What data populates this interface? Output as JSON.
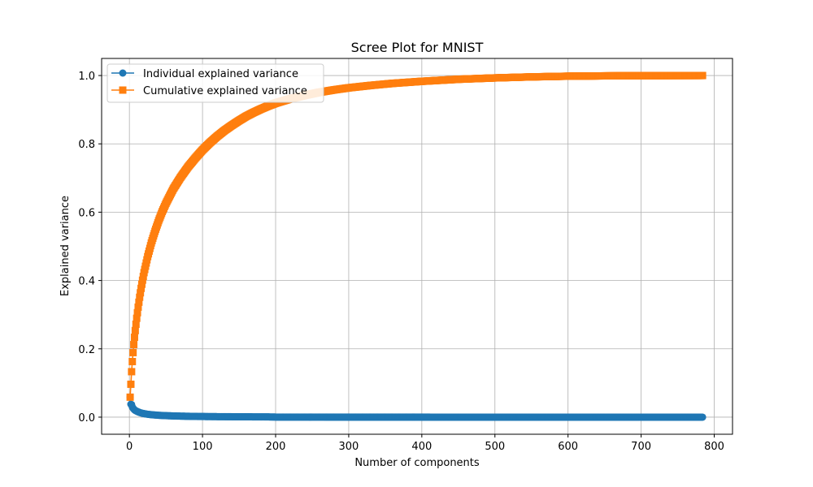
{
  "chart_data": {
    "type": "line",
    "title": "Scree Plot for MNIST",
    "xlabel": "Number of components",
    "ylabel": "Explained variance",
    "xlim": [
      -38,
      825
    ],
    "ylim": [
      -0.05,
      1.05
    ],
    "x_ticks": [
      0,
      100,
      200,
      300,
      400,
      500,
      600,
      700,
      800
    ],
    "x_tick_labels": [
      "0",
      "100",
      "200",
      "300",
      "400",
      "500",
      "600",
      "700",
      "800"
    ],
    "y_ticks": [
      0.0,
      0.2,
      0.4,
      0.6,
      0.8,
      1.0
    ],
    "y_tick_labels": [
      "0.0",
      "0.2",
      "0.4",
      "0.6",
      "0.8",
      "1.0"
    ],
    "grid": true,
    "legend_position": "top-left",
    "series": [
      {
        "name": "Individual explained variance",
        "color": "#1f77b4",
        "marker": "circle",
        "x": [
          1,
          2,
          3,
          4,
          5,
          6,
          7,
          8,
          9,
          10,
          12,
          14,
          16,
          18,
          20,
          25,
          30,
          40,
          50,
          60,
          70,
          80,
          100,
          120,
          150,
          180,
          190,
          200,
          250,
          300,
          400,
          500,
          600,
          700,
          784
        ],
        "values": [
          0.0585,
          0.0378,
          0.0368,
          0.0296,
          0.0262,
          0.0235,
          0.0214,
          0.0196,
          0.0186,
          0.0174,
          0.0154,
          0.0138,
          0.0124,
          0.0113,
          0.0103,
          0.0085,
          0.0072,
          0.0055,
          0.0044,
          0.0036,
          0.003,
          0.0025,
          0.0019,
          0.0015,
          0.0011,
          0.0008,
          0.0007,
          0.0003,
          0.0002,
          0.0001,
          5e-05,
          2e-05,
          1e-05,
          0.0,
          0.0
        ]
      },
      {
        "name": "Cumulative explained variance",
        "color": "#ff7f0e",
        "marker": "square",
        "x": [
          1,
          2,
          3,
          4,
          5,
          6,
          7,
          8,
          9,
          10,
          12,
          14,
          16,
          18,
          20,
          25,
          30,
          35,
          40,
          45,
          50,
          60,
          70,
          80,
          90,
          100,
          110,
          120,
          130,
          140,
          150,
          160,
          170,
          180,
          190,
          200,
          220,
          240,
          260,
          280,
          300,
          330,
          360,
          400,
          450,
          500,
          550,
          600,
          650,
          700,
          750,
          784
        ],
        "values": [
          0.0585,
          0.0963,
          0.1331,
          0.1627,
          0.1889,
          0.2124,
          0.2338,
          0.2534,
          0.272,
          0.2894,
          0.322,
          0.351,
          0.377,
          0.401,
          0.423,
          0.47,
          0.51,
          0.544,
          0.575,
          0.602,
          0.626,
          0.668,
          0.702,
          0.732,
          0.758,
          0.782,
          0.803,
          0.822,
          0.839,
          0.854,
          0.868,
          0.881,
          0.892,
          0.902,
          0.911,
          0.919,
          0.932,
          0.942,
          0.951,
          0.958,
          0.964,
          0.971,
          0.977,
          0.983,
          0.989,
          0.993,
          0.996,
          0.998,
          0.999,
          0.9996,
          0.9999,
          1.0
        ]
      }
    ]
  }
}
